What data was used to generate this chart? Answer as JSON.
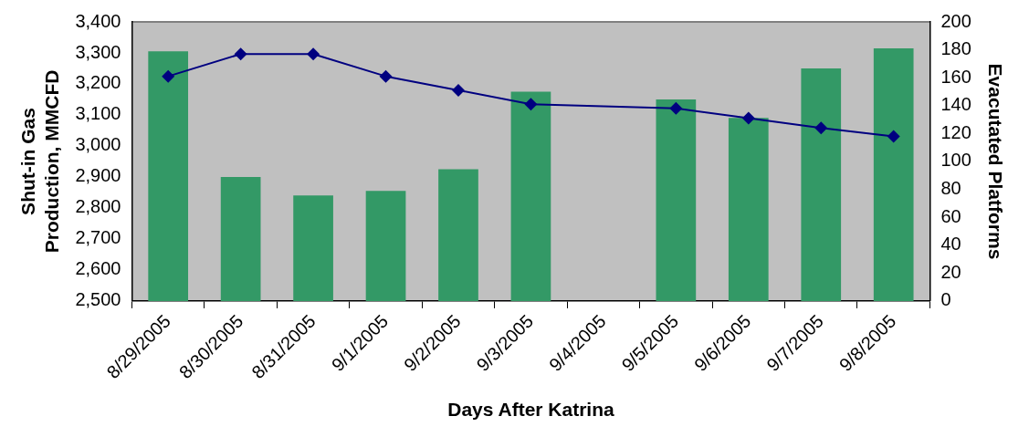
{
  "chart_data": {
    "type": "bar",
    "xlabel": "Days After Katrina",
    "ylabel": "Shut-in Gas Production, MMCFD",
    "y2label": "Evacutated Platforms",
    "categories": [
      "8/29/2005",
      "8/30/2005",
      "8/31/2005",
      "9/1/2005",
      "9/2/2005",
      "9/3/2005",
      "9/4/2005",
      "9/5/2005",
      "9/6/2005",
      "9/7/2005",
      "9/8/2005"
    ],
    "series": [
      {
        "color": "#339966",
        "values": [
          3305,
          2900,
          2840,
          2855,
          2925,
          3175,
          null,
          3150,
          3090,
          3250,
          3315
        ]
      },
      {
        "type": "line",
        "axis": "y2",
        "color": "#000080",
        "marker": "diamond",
        "values": [
          161,
          177,
          177,
          161,
          151,
          141,
          null,
          138,
          131,
          124,
          118
        ]
      }
    ],
    "ylim": [
      2500,
      3400
    ],
    "yticks": [
      {
        "value": 2500,
        "label": "2,500"
      },
      {
        "value": 2600,
        "label": "2,600"
      },
      {
        "value": 2700,
        "label": "2,700"
      },
      {
        "value": 2800,
        "label": "2,800"
      },
      {
        "value": 2900,
        "label": "2,900"
      },
      {
        "value": 3000,
        "label": "3,000"
      },
      {
        "value": 3100,
        "label": "3,100"
      },
      {
        "value": 3200,
        "label": "3,200"
      },
      {
        "value": 3300,
        "label": "3,300"
      },
      {
        "value": 3400,
        "label": "3,400"
      }
    ],
    "y2lim": [
      0,
      200
    ],
    "y2ticks": [
      0,
      20,
      40,
      60,
      80,
      100,
      120,
      140,
      160,
      180,
      200
    ],
    "grid": false,
    "legend": false
  }
}
